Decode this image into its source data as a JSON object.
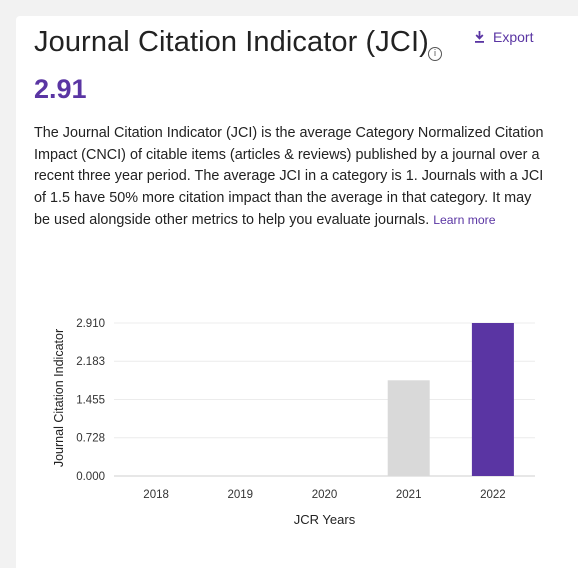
{
  "header": {
    "title": "Journal Citation Indicator (JCI)",
    "info_icon": "info-icon",
    "export_label": "Export",
    "export_icon": "download-icon"
  },
  "metric": {
    "value": "2.91"
  },
  "description": {
    "text": "The Journal Citation Indicator (JCI) is the average Category Normalized Citation Impact (CNCI) of citable items (articles & reviews) published by a journal over a recent three year period. The average JCI in a category is 1. Journals with a JCI of 1.5 have 50% more citation impact than the average in that category. It may be used alongside other metrics to help you evaluate journals.",
    "link": "Learn more"
  },
  "chart_data": {
    "type": "bar",
    "categories": [
      "2018",
      "2019",
      "2020",
      "2021",
      "2022"
    ],
    "values": [
      null,
      null,
      null,
      1.82,
      2.91
    ],
    "colors": [
      null,
      null,
      null,
      "#d9d9d9",
      "#5a35a3"
    ],
    "xlabel": "JCR Years",
    "ylabel": "Journal Citation Indicator",
    "yticks": [
      "0.000",
      "0.728",
      "1.455",
      "2.183",
      "2.910"
    ],
    "ylim": [
      0,
      2.91
    ],
    "grid": true
  }
}
